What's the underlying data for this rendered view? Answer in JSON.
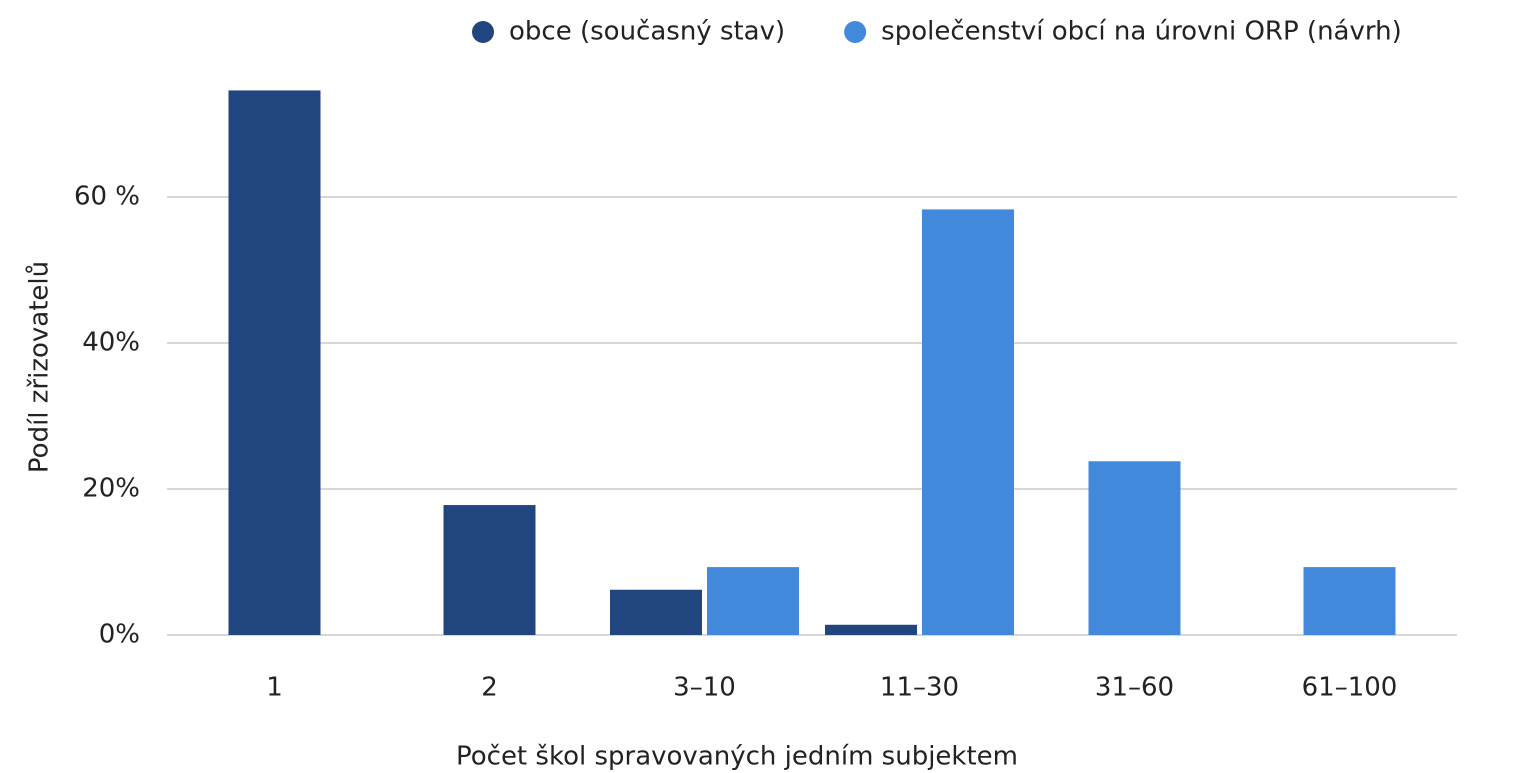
{
  "chart_data": {
    "type": "bar",
    "xlabel": "Počet škol spravovaných jedním subjektem",
    "ylabel": "Podíl zřizovatelů",
    "categories": [
      "1",
      "2",
      "3–10",
      "11–30",
      "31–60",
      "61–100"
    ],
    "series": [
      {
        "name": "obce (současný stav)",
        "color": "#21467f",
        "values": [
          74.6,
          17.8,
          6.2,
          1.4,
          null,
          null
        ]
      },
      {
        "name": "společenství obcí na úrovni ORP (návrh)",
        "color": "#4389db",
        "values": [
          null,
          null,
          9.3,
          58.3,
          23.8,
          9.3
        ]
      }
    ],
    "ylim": [
      0,
      75
    ],
    "yticks": [
      {
        "value": 0,
        "label": "0%"
      },
      {
        "value": 20,
        "label": "20%"
      },
      {
        "value": 40,
        "label": "40%"
      },
      {
        "value": 60,
        "label": "60 %"
      }
    ],
    "grid": true,
    "legend": "top"
  }
}
